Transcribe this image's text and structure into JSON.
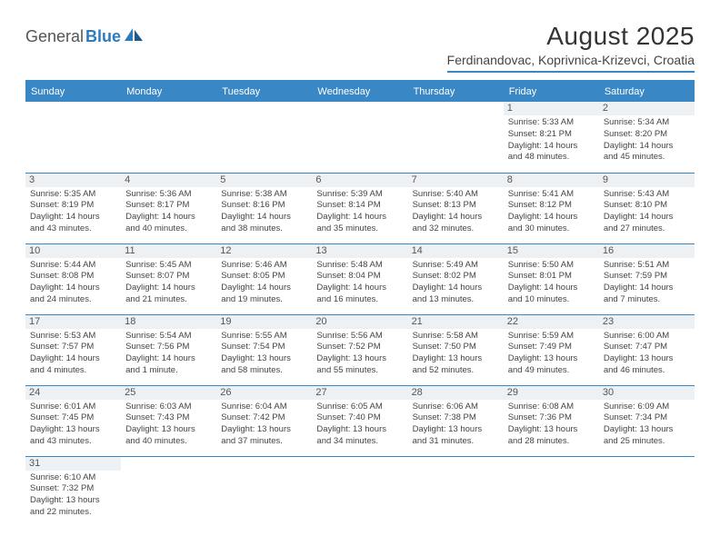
{
  "brand": {
    "word1": "General",
    "word2": "Blue",
    "logo_color": "#2d7bbf"
  },
  "title": {
    "month": "August 2025",
    "location": "Ferdinandovac, Koprivnica-Krizevci, Croatia"
  },
  "colors": {
    "header_bg": "#3a87c5",
    "daynum_bg": "#eef1f4",
    "rule": "#3a87c5"
  },
  "day_names": [
    "Sunday",
    "Monday",
    "Tuesday",
    "Wednesday",
    "Thursday",
    "Friday",
    "Saturday"
  ],
  "weeks": [
    [
      {
        "empty": true
      },
      {
        "empty": true
      },
      {
        "empty": true
      },
      {
        "empty": true
      },
      {
        "empty": true
      },
      {
        "day": "1",
        "sunrise": "Sunrise: 5:33 AM",
        "sunset": "Sunset: 8:21 PM",
        "daylight1": "Daylight: 14 hours",
        "daylight2": "and 48 minutes."
      },
      {
        "day": "2",
        "sunrise": "Sunrise: 5:34 AM",
        "sunset": "Sunset: 8:20 PM",
        "daylight1": "Daylight: 14 hours",
        "daylight2": "and 45 minutes."
      }
    ],
    [
      {
        "day": "3",
        "sunrise": "Sunrise: 5:35 AM",
        "sunset": "Sunset: 8:19 PM",
        "daylight1": "Daylight: 14 hours",
        "daylight2": "and 43 minutes."
      },
      {
        "day": "4",
        "sunrise": "Sunrise: 5:36 AM",
        "sunset": "Sunset: 8:17 PM",
        "daylight1": "Daylight: 14 hours",
        "daylight2": "and 40 minutes."
      },
      {
        "day": "5",
        "sunrise": "Sunrise: 5:38 AM",
        "sunset": "Sunset: 8:16 PM",
        "daylight1": "Daylight: 14 hours",
        "daylight2": "and 38 minutes."
      },
      {
        "day": "6",
        "sunrise": "Sunrise: 5:39 AM",
        "sunset": "Sunset: 8:14 PM",
        "daylight1": "Daylight: 14 hours",
        "daylight2": "and 35 minutes."
      },
      {
        "day": "7",
        "sunrise": "Sunrise: 5:40 AM",
        "sunset": "Sunset: 8:13 PM",
        "daylight1": "Daylight: 14 hours",
        "daylight2": "and 32 minutes."
      },
      {
        "day": "8",
        "sunrise": "Sunrise: 5:41 AM",
        "sunset": "Sunset: 8:12 PM",
        "daylight1": "Daylight: 14 hours",
        "daylight2": "and 30 minutes."
      },
      {
        "day": "9",
        "sunrise": "Sunrise: 5:43 AM",
        "sunset": "Sunset: 8:10 PM",
        "daylight1": "Daylight: 14 hours",
        "daylight2": "and 27 minutes."
      }
    ],
    [
      {
        "day": "10",
        "sunrise": "Sunrise: 5:44 AM",
        "sunset": "Sunset: 8:08 PM",
        "daylight1": "Daylight: 14 hours",
        "daylight2": "and 24 minutes."
      },
      {
        "day": "11",
        "sunrise": "Sunrise: 5:45 AM",
        "sunset": "Sunset: 8:07 PM",
        "daylight1": "Daylight: 14 hours",
        "daylight2": "and 21 minutes."
      },
      {
        "day": "12",
        "sunrise": "Sunrise: 5:46 AM",
        "sunset": "Sunset: 8:05 PM",
        "daylight1": "Daylight: 14 hours",
        "daylight2": "and 19 minutes."
      },
      {
        "day": "13",
        "sunrise": "Sunrise: 5:48 AM",
        "sunset": "Sunset: 8:04 PM",
        "daylight1": "Daylight: 14 hours",
        "daylight2": "and 16 minutes."
      },
      {
        "day": "14",
        "sunrise": "Sunrise: 5:49 AM",
        "sunset": "Sunset: 8:02 PM",
        "daylight1": "Daylight: 14 hours",
        "daylight2": "and 13 minutes."
      },
      {
        "day": "15",
        "sunrise": "Sunrise: 5:50 AM",
        "sunset": "Sunset: 8:01 PM",
        "daylight1": "Daylight: 14 hours",
        "daylight2": "and 10 minutes."
      },
      {
        "day": "16",
        "sunrise": "Sunrise: 5:51 AM",
        "sunset": "Sunset: 7:59 PM",
        "daylight1": "Daylight: 14 hours",
        "daylight2": "and 7 minutes."
      }
    ],
    [
      {
        "day": "17",
        "sunrise": "Sunrise: 5:53 AM",
        "sunset": "Sunset: 7:57 PM",
        "daylight1": "Daylight: 14 hours",
        "daylight2": "and 4 minutes."
      },
      {
        "day": "18",
        "sunrise": "Sunrise: 5:54 AM",
        "sunset": "Sunset: 7:56 PM",
        "daylight1": "Daylight: 14 hours",
        "daylight2": "and 1 minute."
      },
      {
        "day": "19",
        "sunrise": "Sunrise: 5:55 AM",
        "sunset": "Sunset: 7:54 PM",
        "daylight1": "Daylight: 13 hours",
        "daylight2": "and 58 minutes."
      },
      {
        "day": "20",
        "sunrise": "Sunrise: 5:56 AM",
        "sunset": "Sunset: 7:52 PM",
        "daylight1": "Daylight: 13 hours",
        "daylight2": "and 55 minutes."
      },
      {
        "day": "21",
        "sunrise": "Sunrise: 5:58 AM",
        "sunset": "Sunset: 7:50 PM",
        "daylight1": "Daylight: 13 hours",
        "daylight2": "and 52 minutes."
      },
      {
        "day": "22",
        "sunrise": "Sunrise: 5:59 AM",
        "sunset": "Sunset: 7:49 PM",
        "daylight1": "Daylight: 13 hours",
        "daylight2": "and 49 minutes."
      },
      {
        "day": "23",
        "sunrise": "Sunrise: 6:00 AM",
        "sunset": "Sunset: 7:47 PM",
        "daylight1": "Daylight: 13 hours",
        "daylight2": "and 46 minutes."
      }
    ],
    [
      {
        "day": "24",
        "sunrise": "Sunrise: 6:01 AM",
        "sunset": "Sunset: 7:45 PM",
        "daylight1": "Daylight: 13 hours",
        "daylight2": "and 43 minutes."
      },
      {
        "day": "25",
        "sunrise": "Sunrise: 6:03 AM",
        "sunset": "Sunset: 7:43 PM",
        "daylight1": "Daylight: 13 hours",
        "daylight2": "and 40 minutes."
      },
      {
        "day": "26",
        "sunrise": "Sunrise: 6:04 AM",
        "sunset": "Sunset: 7:42 PM",
        "daylight1": "Daylight: 13 hours",
        "daylight2": "and 37 minutes."
      },
      {
        "day": "27",
        "sunrise": "Sunrise: 6:05 AM",
        "sunset": "Sunset: 7:40 PM",
        "daylight1": "Daylight: 13 hours",
        "daylight2": "and 34 minutes."
      },
      {
        "day": "28",
        "sunrise": "Sunrise: 6:06 AM",
        "sunset": "Sunset: 7:38 PM",
        "daylight1": "Daylight: 13 hours",
        "daylight2": "and 31 minutes."
      },
      {
        "day": "29",
        "sunrise": "Sunrise: 6:08 AM",
        "sunset": "Sunset: 7:36 PM",
        "daylight1": "Daylight: 13 hours",
        "daylight2": "and 28 minutes."
      },
      {
        "day": "30",
        "sunrise": "Sunrise: 6:09 AM",
        "sunset": "Sunset: 7:34 PM",
        "daylight1": "Daylight: 13 hours",
        "daylight2": "and 25 minutes."
      }
    ],
    [
      {
        "day": "31",
        "sunrise": "Sunrise: 6:10 AM",
        "sunset": "Sunset: 7:32 PM",
        "daylight1": "Daylight: 13 hours",
        "daylight2": "and 22 minutes."
      },
      {
        "empty": true
      },
      {
        "empty": true
      },
      {
        "empty": true
      },
      {
        "empty": true
      },
      {
        "empty": true
      },
      {
        "empty": true
      }
    ]
  ]
}
